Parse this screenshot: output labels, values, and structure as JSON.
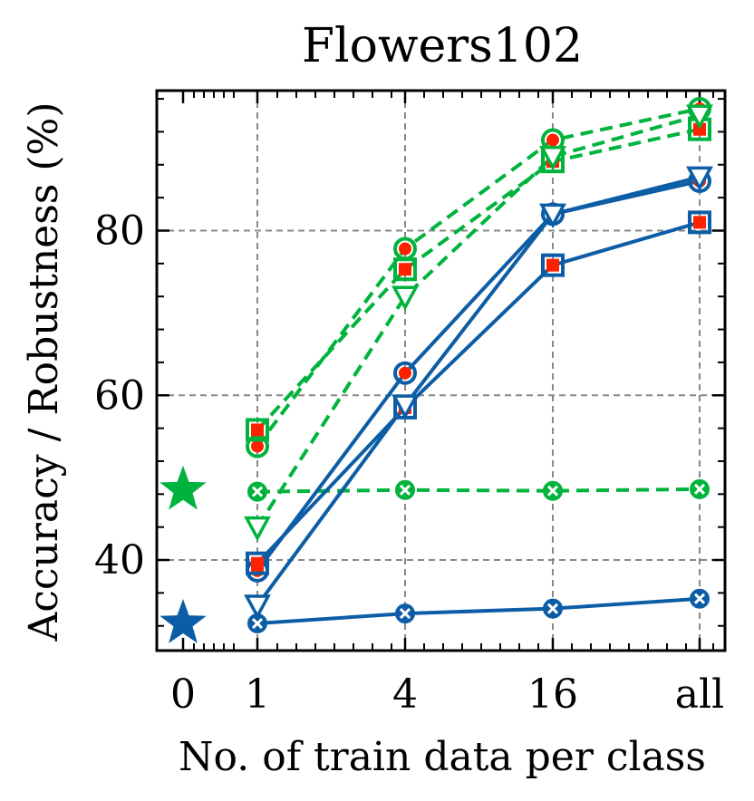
{
  "chart_data": {
    "type": "line",
    "title": "Flowers102",
    "xlabel": "No. of train data per class",
    "ylabel": "Accuracy / Robustness (%)",
    "categories": [
      "0",
      "1",
      "4",
      "16",
      "all"
    ],
    "ylim": [
      29,
      97
    ],
    "yticks": [
      40,
      60,
      80
    ],
    "grid": true,
    "colors": {
      "green": "#00b33c",
      "blue": "#0c5da5",
      "red": "#ff2200"
    },
    "stars": [
      {
        "name": "zero-shot-green",
        "color": "#00b33c",
        "y": 48.5
      },
      {
        "name": "zero-shot-blue",
        "color": "#0c5da5",
        "y": 32.3
      }
    ],
    "series": [
      {
        "name": "green-circle",
        "color": "#00b33c",
        "dash": true,
        "marker": "circle-dot",
        "values": [
          null,
          53.8,
          77.8,
          91.0,
          94.8
        ]
      },
      {
        "name": "green-square",
        "color": "#00b33c",
        "dash": true,
        "marker": "square-dot",
        "values": [
          null,
          55.8,
          75.3,
          88.4,
          92.3
        ]
      },
      {
        "name": "green-triangle",
        "color": "#00b33c",
        "dash": true,
        "marker": "triangle-open",
        "values": [
          null,
          44.0,
          72.0,
          89.0,
          94.0
        ]
      },
      {
        "name": "green-x",
        "color": "#00b33c",
        "dash": true,
        "marker": "x-circle",
        "values": [
          null,
          48.3,
          48.5,
          48.4,
          48.6
        ]
      },
      {
        "name": "blue-circle",
        "color": "#0c5da5",
        "dash": false,
        "marker": "circle-dot",
        "values": [
          null,
          38.7,
          62.7,
          82.0,
          86.0
        ]
      },
      {
        "name": "blue-square",
        "color": "#0c5da5",
        "dash": false,
        "marker": "square-dot",
        "values": [
          null,
          39.6,
          58.5,
          75.8,
          81.0
        ]
      },
      {
        "name": "blue-triangle",
        "color": "#0c5da5",
        "dash": false,
        "marker": "triangle-open",
        "values": [
          null,
          34.5,
          58.8,
          82.0,
          86.5
        ]
      },
      {
        "name": "blue-x",
        "color": "#0c5da5",
        "dash": false,
        "marker": "x-circle",
        "values": [
          null,
          32.3,
          33.5,
          34.1,
          35.3
        ]
      }
    ]
  }
}
